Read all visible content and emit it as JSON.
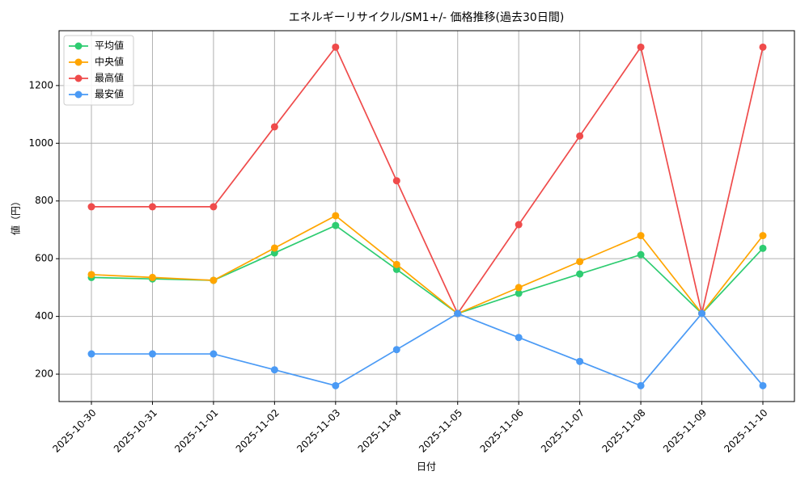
{
  "chart_data": {
    "type": "line",
    "title": "エネルギーリサイクル/SM1+/- 価格推移(過去30日間)",
    "x_label": "日付",
    "y_label": "値（円）",
    "categories": [
      "2025-10-30",
      "2025-10-31",
      "2025-11-01",
      "2025-11-02",
      "2025-11-03",
      "2025-11-04",
      "2025-11-05",
      "2025-11-06",
      "2025-11-07",
      "2025-11-08",
      "2025-11-09",
      "2025-11-10"
    ],
    "series": [
      {
        "name": "平均値",
        "color": "#2ecc71",
        "values": [
          535,
          530,
          525,
          620,
          715,
          563,
          410,
          480,
          547,
          614,
          410,
          636
        ]
      },
      {
        "name": "中央値",
        "color": "#ffa500",
        "values": [
          545,
          535,
          525,
          637,
          749,
          580,
          410,
          500,
          590,
          680,
          410,
          680
        ]
      },
      {
        "name": "最高値",
        "color": "#ef4b4b",
        "values": [
          780,
          780,
          780,
          1057,
          1333,
          870,
          410,
          718,
          1025,
          1333,
          410,
          1333
        ]
      },
      {
        "name": "最安値",
        "color": "#4a9af5",
        "values": [
          270,
          270,
          270,
          215,
          160,
          285,
          410,
          327,
          244,
          160,
          410,
          160
        ]
      }
    ],
    "ylim": [
      105,
      1390
    ],
    "yticks": [
      200,
      400,
      600,
      800,
      1000,
      1200
    ],
    "grid": true,
    "legend": "upper left"
  }
}
